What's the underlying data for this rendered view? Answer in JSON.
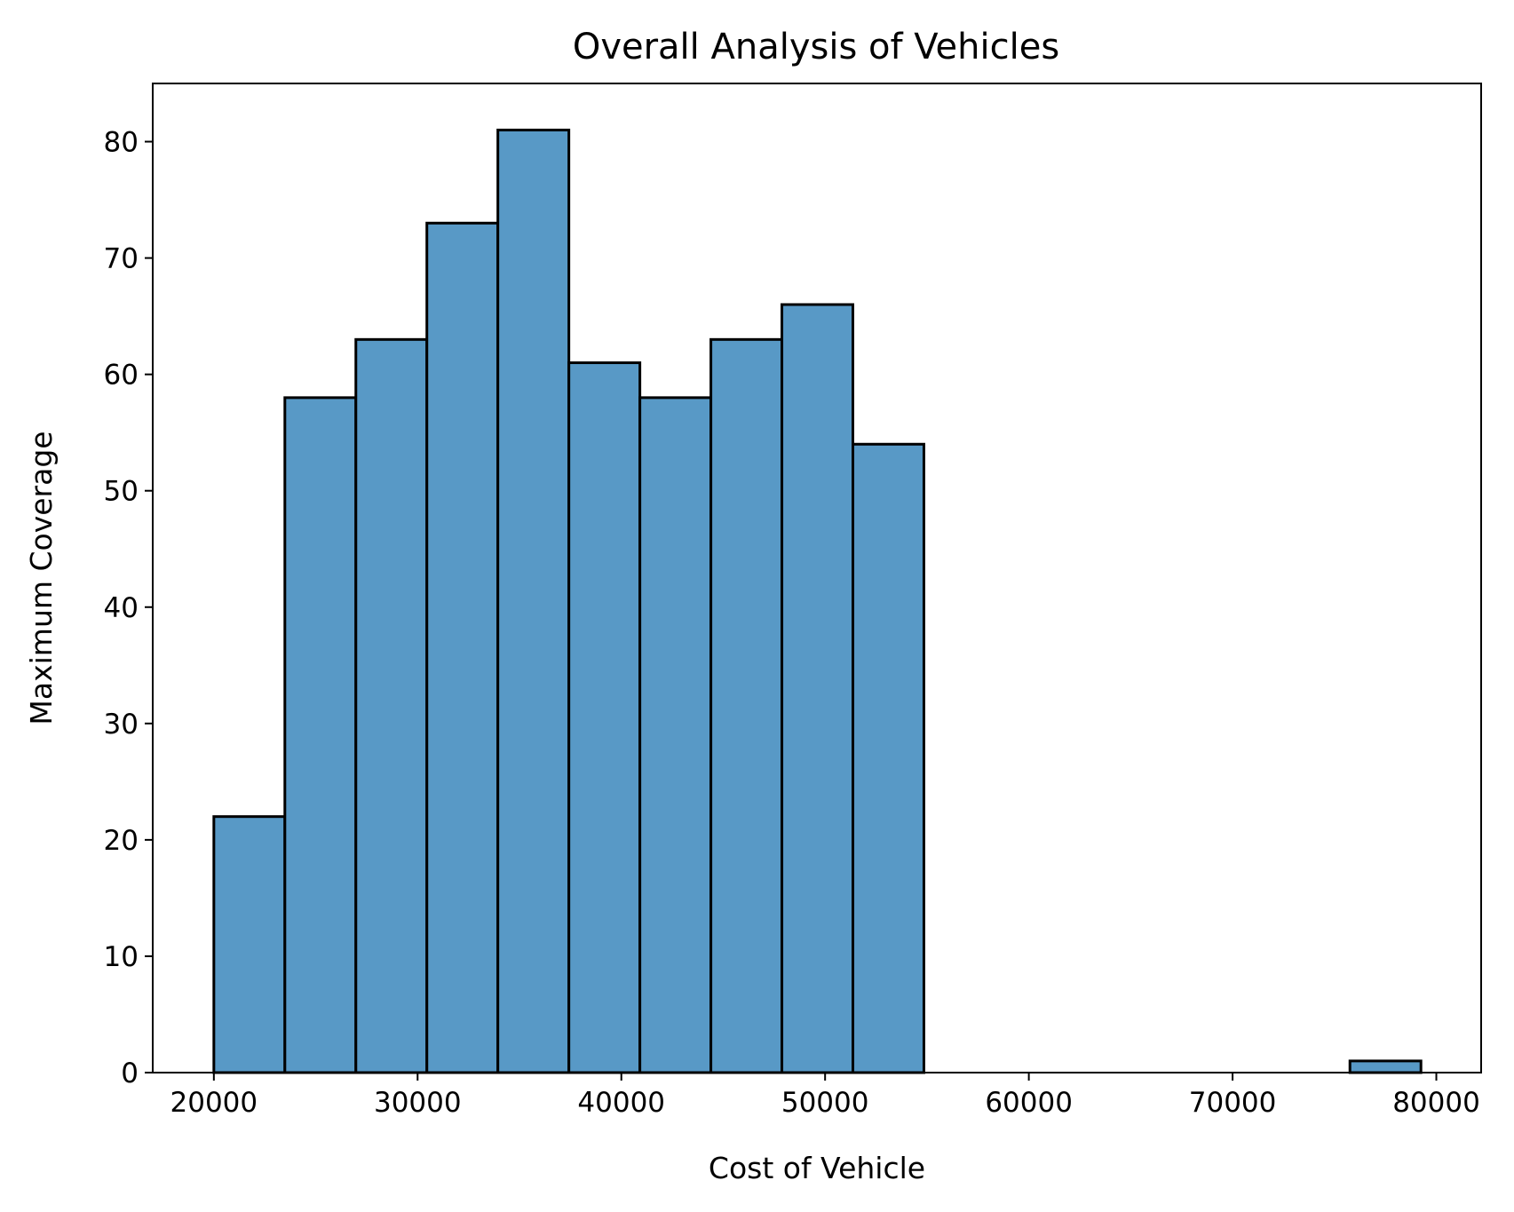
{
  "chart_data": {
    "type": "bar",
    "subtype": "histogram",
    "title": "Overall Analysis of Vehicles",
    "xlabel": "Cost of Vehicle",
    "ylabel": "Maximum Coverage",
    "xlim": [
      17000,
      82200
    ],
    "ylim": [
      0,
      85
    ],
    "x_ticks": [
      20000,
      30000,
      40000,
      50000,
      60000,
      70000,
      80000
    ],
    "y_ticks": [
      0,
      10,
      20,
      30,
      40,
      50,
      60,
      70,
      80
    ],
    "bins": [
      {
        "start": 20000,
        "end": 23485,
        "count": 22
      },
      {
        "start": 23485,
        "end": 26970,
        "count": 58
      },
      {
        "start": 26970,
        "end": 30455,
        "count": 63
      },
      {
        "start": 30455,
        "end": 33940,
        "count": 73
      },
      {
        "start": 33940,
        "end": 37425,
        "count": 81
      },
      {
        "start": 37425,
        "end": 40910,
        "count": 61
      },
      {
        "start": 40910,
        "end": 44395,
        "count": 58
      },
      {
        "start": 44395,
        "end": 47880,
        "count": 63
      },
      {
        "start": 47880,
        "end": 51365,
        "count": 66
      },
      {
        "start": 51365,
        "end": 54850,
        "count": 54
      },
      {
        "start": 54850,
        "end": 58335,
        "count": 0
      },
      {
        "start": 58335,
        "end": 61820,
        "count": 0
      },
      {
        "start": 61820,
        "end": 65305,
        "count": 0
      },
      {
        "start": 65305,
        "end": 68790,
        "count": 0
      },
      {
        "start": 68790,
        "end": 72275,
        "count": 0
      },
      {
        "start": 72275,
        "end": 75760,
        "count": 0
      },
      {
        "start": 75760,
        "end": 79245,
        "count": 1
      }
    ],
    "colors": {
      "bar_fill": "#5899c6",
      "bar_edge": "#000000",
      "axis": "#000000"
    },
    "grid": false,
    "legend": "none"
  }
}
